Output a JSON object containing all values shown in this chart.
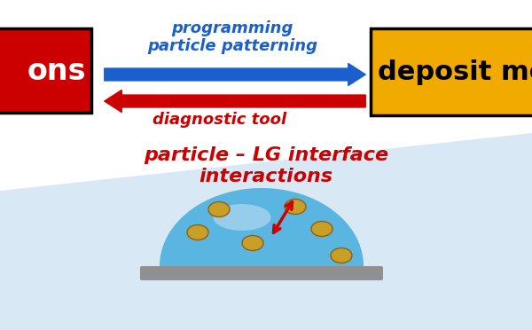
{
  "bg_color": "#ffffff",
  "bottom_bg_color": "#d8e8f5",
  "left_box_color": "#cc0000",
  "right_box_color": "#f0aa00",
  "left_box_text": "ons",
  "right_box_text": "deposit morp",
  "arrow_blue_color": "#1a5fcc",
  "arrow_red_color": "#cc0000",
  "top_label_blue": "programming\nparticle patterning",
  "bottom_label_red": "diagnostic tool",
  "center_label": "particle – LG interface\ninteractions",
  "droplet_color": "#5ab5e0",
  "droplet_highlight": "#b0d8f0",
  "particle_color": "#c8a028",
  "substrate_color": "#909090",
  "red_arrow_color": "#cc0000",
  "figsize": [
    6.0,
    3.72
  ],
  "dpi": 100
}
